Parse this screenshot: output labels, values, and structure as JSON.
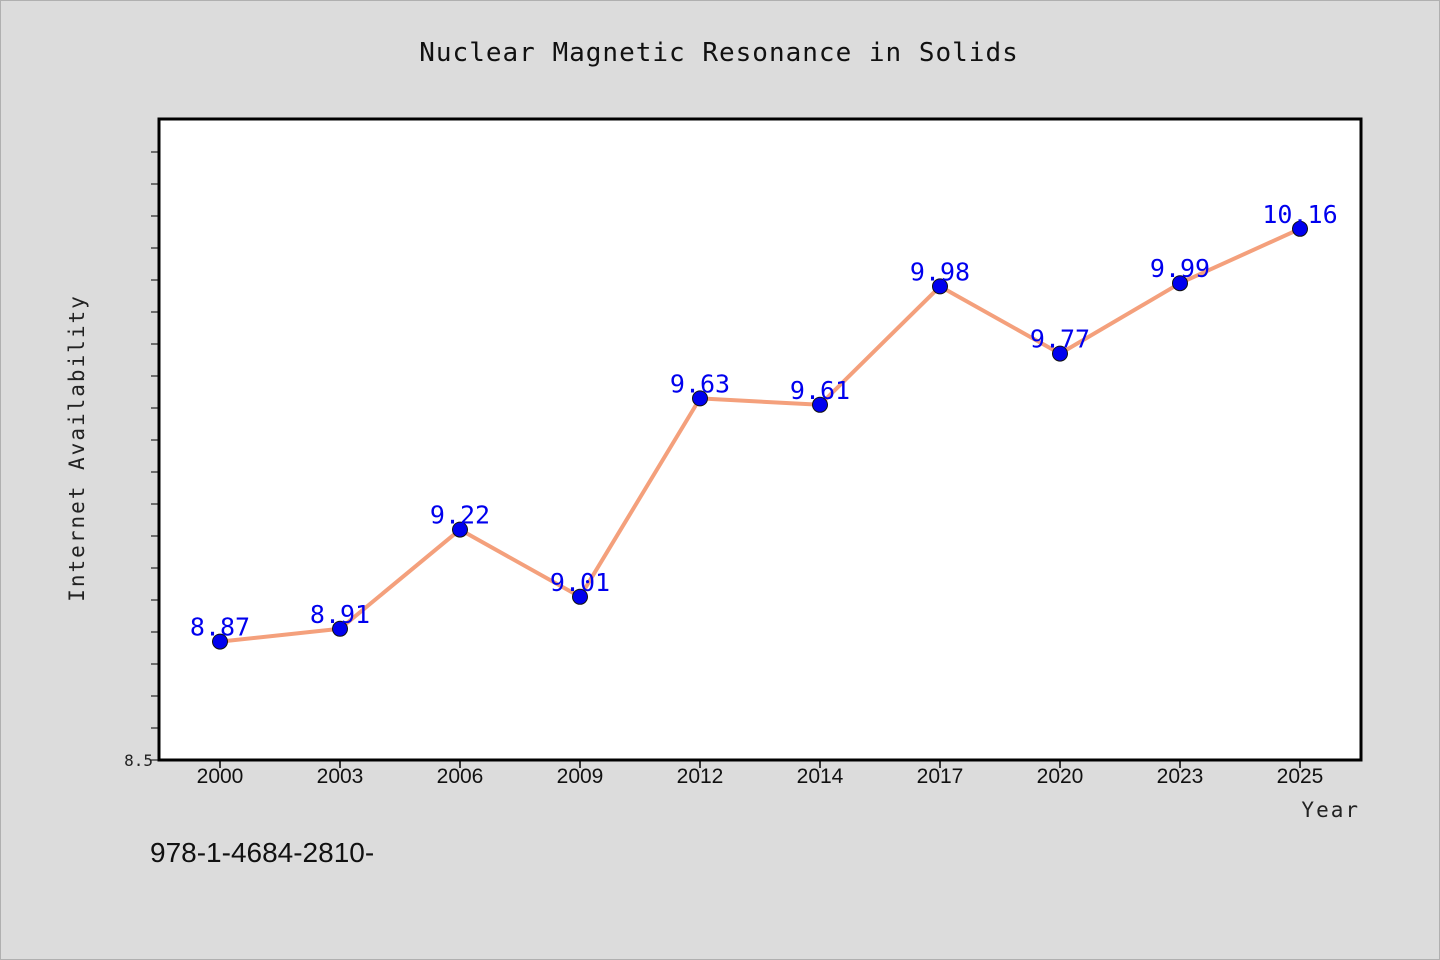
{
  "chart_data": {
    "type": "line",
    "title": "Nuclear Magnetic Resonance in Solids",
    "xlabel": "Year",
    "ylabel": "Internet Availability",
    "categories": [
      "2000",
      "2003",
      "2006",
      "2009",
      "2012",
      "2014",
      "2017",
      "2020",
      "2023",
      "2025"
    ],
    "series": [
      {
        "values": [
          8.87,
          8.91,
          9.22,
          9.01,
          9.63,
          9.61,
          9.98,
          9.77,
          9.99,
          10.16
        ],
        "labels": [
          "8.87",
          "8.91",
          "9.22",
          "9.01",
          "9.63",
          "9.61",
          "9.98",
          "9.77",
          "9.99",
          "10.16"
        ],
        "line_color": "#f4a07c",
        "marker_color": "#0000ee"
      }
    ],
    "ylim": [
      8.5,
      10.5
    ],
    "y_tick_labels": [
      "8.5"
    ],
    "grid": false,
    "legend": "none"
  },
  "footer": {
    "text": "978-1-4684-2810-"
  }
}
